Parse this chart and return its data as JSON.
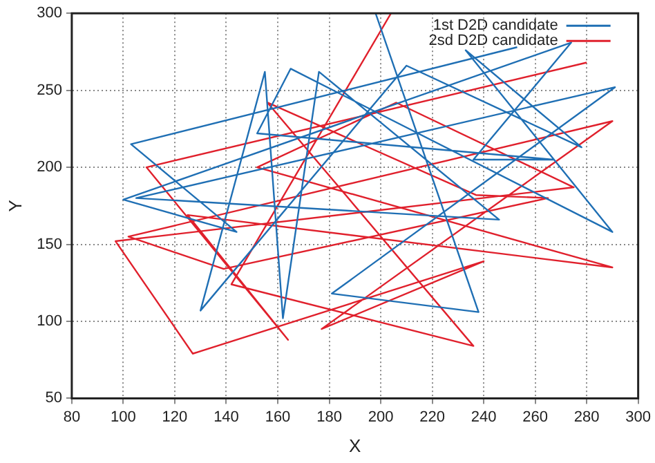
{
  "chart_data": {
    "type": "line",
    "xlabel": "X",
    "ylabel": "Y",
    "xlim": [
      80,
      300
    ],
    "xticks": [
      80,
      100,
      120,
      140,
      160,
      180,
      200,
      220,
      240,
      260,
      280,
      300
    ],
    "ylim": [
      50,
      300
    ],
    "yticks": [
      50,
      100,
      150,
      200,
      250,
      300
    ],
    "grid": true,
    "legend": "top right",
    "marker": "none",
    "line_style": "solid",
    "series": [
      {
        "name": "1st D2D candidate",
        "color": "#1f6fb4",
        "x": [
          253,
          103,
          144,
          100,
          274,
          236,
          267,
          152,
          165,
          290,
          233,
          278,
          210,
          130,
          155,
          162,
          176,
          246,
          105,
          291,
          181,
          238,
          198
        ],
        "values": [
          278,
          215,
          158,
          179,
          281,
          205,
          205,
          222,
          264,
          158,
          276,
          213,
          266,
          107,
          262,
          102,
          262,
          166,
          180,
          252,
          118,
          106,
          300
        ]
      },
      {
        "name": "2sd D2D candidate",
        "color": "#e0202c",
        "x": [
          280,
          109,
          164,
          125,
          290,
          152,
          206,
          275,
          97,
          127,
          240,
          177,
          290,
          102,
          139,
          265,
          237,
          156,
          236,
          142,
          204
        ],
        "values": [
          268,
          200,
          88,
          169,
          135,
          200,
          242,
          187,
          152,
          79,
          139,
          95,
          230,
          155,
          134,
          180,
          182,
          242,
          84,
          124,
          300
        ]
      }
    ]
  }
}
